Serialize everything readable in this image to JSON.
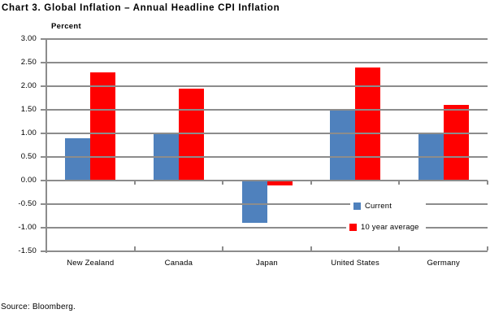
{
  "title": "Chart 3. Global Inflation – Annual Headline CPI Inflation",
  "source": "Source: Bloomberg.",
  "chart_data": {
    "type": "bar",
    "title": "Chart 3. Global Inflation – Annual Headline CPI Inflation",
    "ylabel": "Percent",
    "categories": [
      "New Zealand",
      "Canada",
      "Japan",
      "United States",
      "Germany"
    ],
    "series": [
      {
        "name": "Current",
        "color": "#4F81BD",
        "values": [
          0.9,
          1.0,
          -0.9,
          1.5,
          1.0
        ]
      },
      {
        "name": "10 year average",
        "color": "#FF0000",
        "values": [
          2.3,
          1.95,
          -0.1,
          2.4,
          1.6
        ]
      }
    ],
    "y_axis": {
      "min": -1.5,
      "max": 3.0,
      "step": 0.5,
      "tick_labels": [
        "3.00",
        "2.50",
        "2.00",
        "1.50",
        "1.00",
        "0.50",
        "0.00",
        "-0.50",
        "-1.00",
        "-1.50"
      ]
    },
    "grid": true,
    "grid_color": "#8C8C8C",
    "legend_position": "inside-right",
    "source_note": "Source: Bloomberg."
  }
}
